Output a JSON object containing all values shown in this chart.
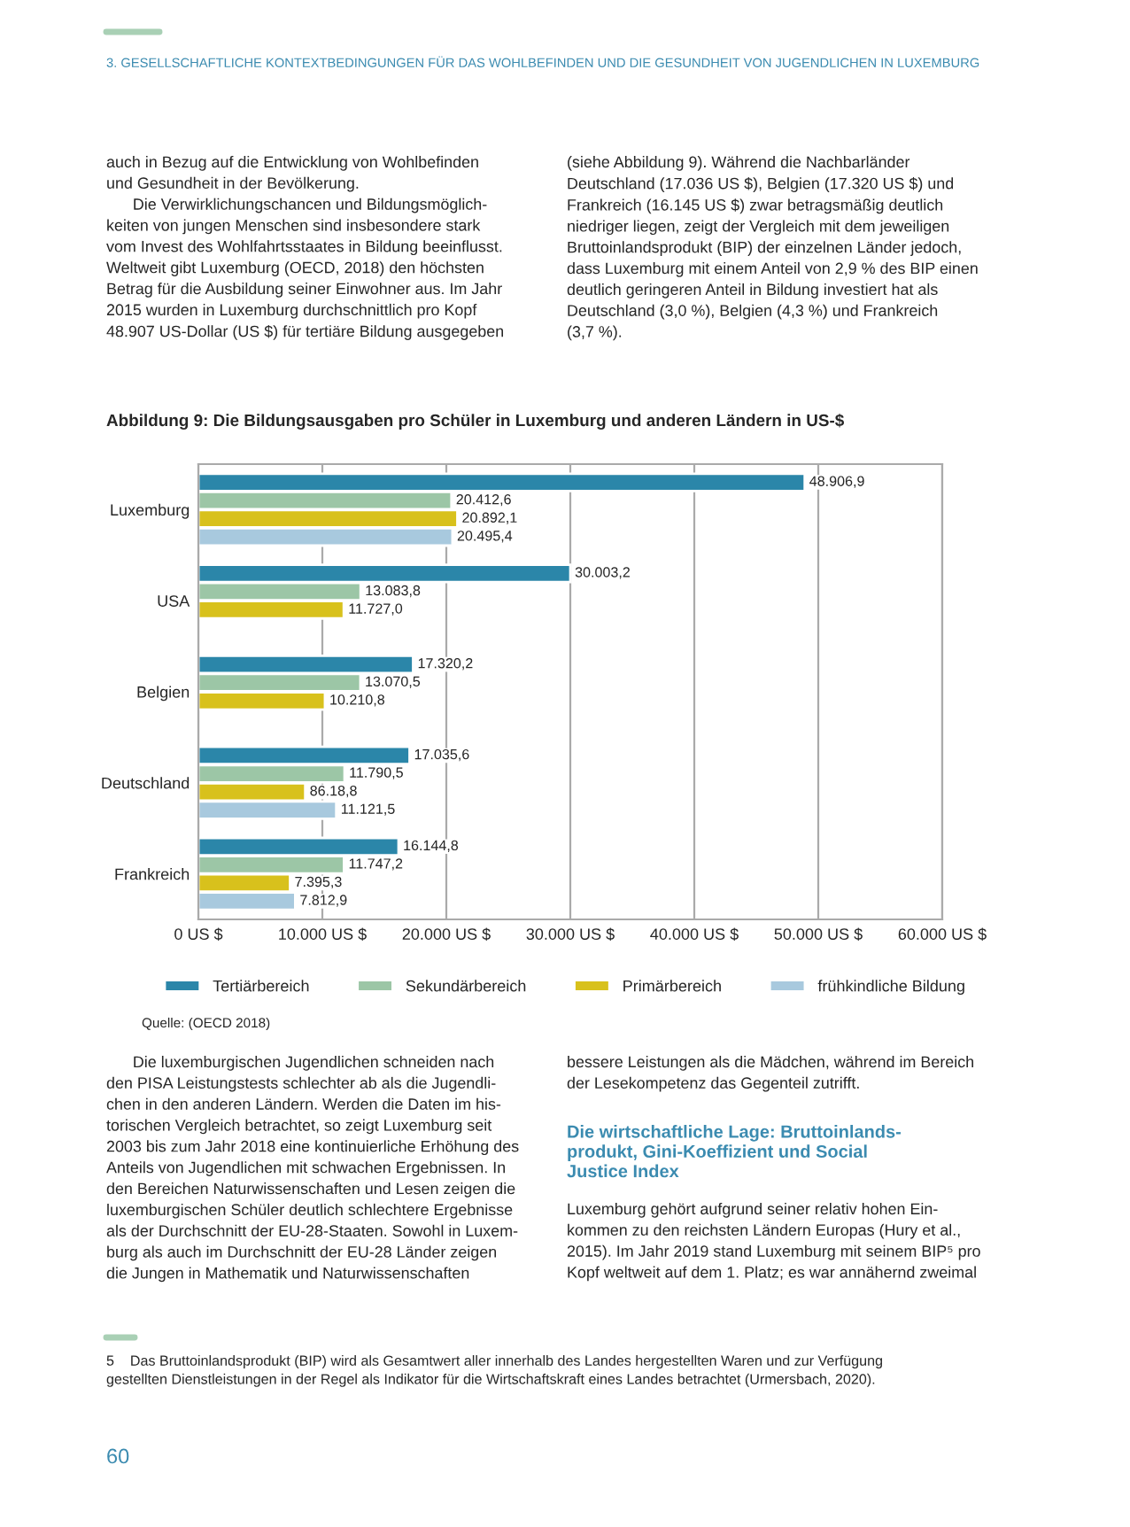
{
  "chart_data": {
    "type": "bar",
    "orientation": "horizontal",
    "title": "Abbildung 9: Die Bildungsausgaben pro Schüler in Luxemburg und anderen Ländern in US-$",
    "categories": [
      "Luxemburg",
      "USA",
      "Belgien",
      "Deutschland",
      "Frankreich"
    ],
    "series": [
      {
        "name": "Tertiärbereich",
        "color": "#2b86a9",
        "values": [
          48906.9,
          30003.2,
          17320.2,
          17035.6,
          16144.8
        ],
        "value_labels": [
          "48.906,9",
          "30.003,2",
          "17.320,2",
          "17.035,6",
          "16.144,8"
        ]
      },
      {
        "name": "Sekundärbereich",
        "color": "#9cc6a6",
        "values": [
          20412.6,
          13083.8,
          13070.5,
          11790.5,
          11747.2
        ],
        "value_labels": [
          "20.412,6",
          "13.083,8",
          "13.070,5",
          "11.790,5",
          "11.747,2"
        ]
      },
      {
        "name": "Primärbereich",
        "color": "#d8c11c",
        "values": [
          20892.1,
          11727.0,
          10210.8,
          8618.8,
          7395.3
        ],
        "value_labels": [
          "20.892,1",
          "11.727,0",
          "10.210,8",
          "86.18,8",
          "7.395,3"
        ]
      },
      {
        "name": "frühkindliche Bildung",
        "color": "#a8c9de",
        "values": [
          20495.4,
          null,
          null,
          11121.5,
          7812.9
        ],
        "value_labels": [
          "20.495,4",
          null,
          null,
          "11.121,5",
          "7.812,9"
        ]
      }
    ],
    "xlim": [
      0,
      60000
    ],
    "xticks": [
      {
        "value": 0,
        "label": "0 US $"
      },
      {
        "value": 10000,
        "label": "10.000 US $"
      },
      {
        "value": 20000,
        "label": "20.000 US $"
      },
      {
        "value": 30000,
        "label": "30.000 US $"
      },
      {
        "value": 40000,
        "label": "40.000 US $"
      },
      {
        "value": 50000,
        "label": "50.000 US $"
      },
      {
        "value": 60000,
        "label": "60.000 US $"
      }
    ],
    "grid": "x",
    "legend": "bottom",
    "annotations": [
      "3. GESELLSCHAFTLICHE KONTEXTBEDINGUNGEN FÜR DAS WOHLBEFINDEN UND DIE GESUNDHEIT VON JUGENDLICHEN IN LUXEMBURG",
      "auch in Bezug auf die Entwicklung von Wohlbefinden\nund Gesundheit in der Bevölkerung.\n      Die Verwirklichungschancen und Bildungsmöglich-\nkeiten von jungen Menschen sind insbesondere stark\nvom Invest des Wohlfahrtsstaates in Bildung beeinflusst.\nWeltweit gibt Luxemburg (OECD, 2018) den höchsten\nBetrag für die Ausbildung seiner Einwohner aus. Im Jahr\n2015 wurden in Luxemburg durchschnittlich pro Kopf\n48.907 US-Dollar (US $) für tertiäre Bildung ausgegeben",
      "(siehe Abbildung 9). Während die Nachbarländer\nDeutschland (17.036 US $), Belgien (17.320 US $) und\nFrankreich (16.145 US $) zwar betragsmäßig deutlich\nniedriger liegen, zeigt der Vergleich mit dem jeweiligen\nBruttoinlandsprodukt (BIP) der einzelnen Länder jedoch,\ndass Luxemburg mit einem Anteil von 2,9 % des BIP einen\ndeutlich geringeren Anteil in Bildung investiert hat als\nDeutschland (3,0 %), Belgien (4,3 %) und Frankreich\n(3,7 %).",
      "Quelle: (OECD 2018)",
      "      Die luxemburgischen Jugendlichen schneiden nach\nden PISA Leistungstests schlechter ab als die Jugendli-\nchen in den anderen Ländern. Werden die Daten im his-\ntorischen Vergleich betrachtet, so zeigt Luxemburg seit\n2003 bis zum Jahr 2018 eine kontinuierliche Erhöhung des\nAnteils von Jugendlichen mit schwachen Ergebnissen. In\nden Bereichen Naturwissenschaften und Lesen zeigen die\nluxemburgischen Schüler deutlich schlechtere Ergebnisse\nals der Durchschnitt der EU-28-Staaten. Sowohl in Luxem-\nburg als auch im Durchschnitt der EU-28 Länder zeigen\ndie Jungen in Mathematik und Naturwissenschaften",
      "bessere Leistungen als die Mädchen, während im Bereich\nder Lesekompetenz das Gegenteil zutrifft.",
      "Die wirtschaftliche Lage: Bruttoinlands-\nprodukt, Gini-Koeffizient und Social\nJustice Index",
      "Luxemburg gehört aufgrund seiner relativ hohen Ein-\nkommen zu den reichsten Ländern Europas (Hury et al.,\n2015). Im Jahr 2019 stand Luxemburg mit seinem BIP⁵ pro\nKopf weltweit auf dem 1. Platz; es war annähernd zweimal",
      "5    Das Bruttoinlandsprodukt (BIP) wird als Gesamtwert aller innerhalb des Landes hergestellten Waren und zur Verfügung\ngestellten Dienstleistungen in der Regel als Indikator für die Wirtschaftskraft eines Landes betrachtet (Urmersbach, 2020).",
      "60"
    ]
  }
}
